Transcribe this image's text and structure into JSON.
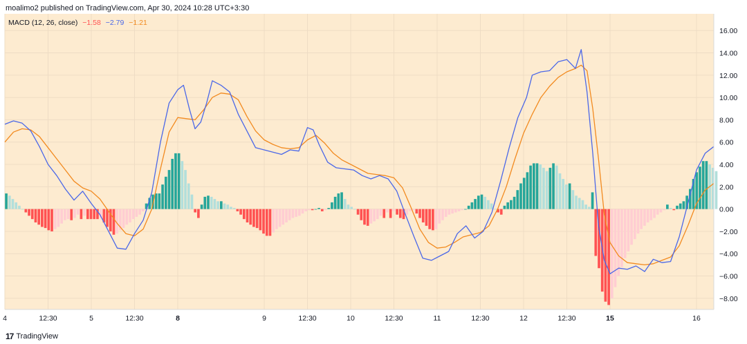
{
  "header": {
    "published": "moalimo2 published on TradingView.com, Apr 30, 2024 10:28 UTC+3:30"
  },
  "footer": {
    "brand": "TradingView",
    "logo": "17"
  },
  "colors": {
    "background": "#fdebd0",
    "macd_line": "#4a67e8",
    "signal_line": "#f28a1f",
    "hist_pos_strong": "#26a69a",
    "hist_pos_weak": "#b2dfdb",
    "hist_neg_strong": "#ff5252",
    "hist_neg_weak": "#ffcdd2",
    "grid": "#eedcc4",
    "axis_text": "#131722"
  },
  "chart_data": {
    "type": "line",
    "indicator": "MACD (12, 26, close)",
    "legend": {
      "label": "MACD (12, 26, close)",
      "histogram_value": "−1.58",
      "macd_value": "−2.79",
      "signal_value": "−1.21"
    },
    "ylim": [
      -9,
      17.5
    ],
    "y_ticks": [
      16,
      14,
      12,
      10,
      8,
      6,
      4,
      2,
      0,
      -2,
      -4,
      -6,
      -8
    ],
    "y_tick_labels": [
      "16.00",
      "14.00",
      "12.00",
      "10.00",
      "8.00",
      "6.00",
      "4.00",
      "2.00",
      "0.00",
      "−2.00",
      "−4.00",
      "−6.00",
      "−8.00"
    ],
    "x_range": [
      0,
      246
    ],
    "x_ticks": [
      {
        "x": 0,
        "label": "4",
        "bold": false
      },
      {
        "x": 15,
        "label": "12:30",
        "bold": false
      },
      {
        "x": 30,
        "label": "5",
        "bold": false
      },
      {
        "x": 45,
        "label": "12:30",
        "bold": false
      },
      {
        "x": 60,
        "label": "8",
        "bold": true
      },
      {
        "x": 90,
        "label": "9",
        "bold": false
      },
      {
        "x": 105,
        "label": "12:30",
        "bold": false
      },
      {
        "x": 120,
        "label": "10",
        "bold": false
      },
      {
        "x": 135,
        "label": "12:30",
        "bold": false
      },
      {
        "x": 150,
        "label": "11",
        "bold": false
      },
      {
        "x": 165,
        "label": "12:30",
        "bold": false
      },
      {
        "x": 180,
        "label": "12",
        "bold": false
      },
      {
        "x": 195,
        "label": "12:30",
        "bold": false
      },
      {
        "x": 210,
        "label": "15",
        "bold": true
      },
      {
        "x": 240,
        "label": "16",
        "bold": false
      }
    ],
    "series": [
      {
        "name": "MACD",
        "points": [
          [
            0,
            7.6
          ],
          [
            3,
            7.9
          ],
          [
            6,
            7.7
          ],
          [
            9,
            7
          ],
          [
            12,
            5.6
          ],
          [
            15,
            4
          ],
          [
            18,
            3
          ],
          [
            21,
            1.8
          ],
          [
            24,
            0.8
          ],
          [
            27,
            1.6
          ],
          [
            30,
            0.5
          ],
          [
            33,
            -0.5
          ],
          [
            36,
            -2
          ],
          [
            39,
            -3.5
          ],
          [
            42,
            -3.6
          ],
          [
            45,
            -2.2
          ],
          [
            48,
            -1
          ],
          [
            51,
            1.5
          ],
          [
            54,
            6
          ],
          [
            57,
            9.5
          ],
          [
            60,
            10.7
          ],
          [
            62,
            11.1
          ],
          [
            64,
            9
          ],
          [
            66,
            7.2
          ],
          [
            68,
            7.8
          ],
          [
            70,
            9.5
          ],
          [
            72,
            11.5
          ],
          [
            75,
            11.1
          ],
          [
            78,
            10.5
          ],
          [
            81,
            8.5
          ],
          [
            84,
            7
          ],
          [
            87,
            5.5
          ],
          [
            90,
            5.3
          ],
          [
            93,
            5.1
          ],
          [
            96,
            4.9
          ],
          [
            99,
            5.3
          ],
          [
            102,
            5.2
          ],
          [
            105,
            7.3
          ],
          [
            107,
            7.1
          ],
          [
            109,
            5.8
          ],
          [
            112,
            4.2
          ],
          [
            115,
            3.7
          ],
          [
            118,
            3.6
          ],
          [
            121,
            3.5
          ],
          [
            124,
            3
          ],
          [
            127,
            2.7
          ],
          [
            130,
            3
          ],
          [
            133,
            2.7
          ],
          [
            136,
            1.6
          ],
          [
            139,
            -0.5
          ],
          [
            142,
            -2.5
          ],
          [
            145,
            -4.4
          ],
          [
            148,
            -4.6
          ],
          [
            151,
            -4.2
          ],
          [
            154,
            -3.8
          ],
          [
            157,
            -2.2
          ],
          [
            160,
            -1.5
          ],
          [
            163,
            -2.6
          ],
          [
            166,
            -2
          ],
          [
            169,
            -0.3
          ],
          [
            172,
            2.5
          ],
          [
            175,
            5.5
          ],
          [
            178,
            8.2
          ],
          [
            181,
            10
          ],
          [
            183,
            12
          ],
          [
            186,
            12.3
          ],
          [
            189,
            12.4
          ],
          [
            192,
            13.2
          ],
          [
            195,
            13.4
          ],
          [
            198,
            12.6
          ],
          [
            200,
            14.3
          ],
          [
            202,
            10.5
          ],
          [
            204,
            5
          ],
          [
            206,
            -1.5
          ],
          [
            208,
            -4.6
          ],
          [
            210,
            -5.8
          ],
          [
            213,
            -5.3
          ],
          [
            216,
            -5.4
          ],
          [
            219,
            -5.1
          ],
          [
            222,
            -5.6
          ],
          [
            225,
            -4.5
          ],
          [
            228,
            -4.8
          ],
          [
            231,
            -4.7
          ],
          [
            234,
            -2.5
          ],
          [
            237,
            0.5
          ],
          [
            240,
            3.5
          ],
          [
            243,
            5
          ],
          [
            246,
            5.6
          ]
        ]
      },
      {
        "name": "Signal",
        "points": [
          [
            0,
            6
          ],
          [
            3,
            6.9
          ],
          [
            6,
            7.2
          ],
          [
            9,
            7.1
          ],
          [
            12,
            6.5
          ],
          [
            15,
            5.5
          ],
          [
            18,
            4.5
          ],
          [
            21,
            3.5
          ],
          [
            24,
            2.5
          ],
          [
            27,
            1.9
          ],
          [
            30,
            1.6
          ],
          [
            33,
            0.9
          ],
          [
            36,
            -0.2
          ],
          [
            39,
            -1.3
          ],
          [
            42,
            -2.2
          ],
          [
            45,
            -2.4
          ],
          [
            48,
            -1.8
          ],
          [
            51,
            0
          ],
          [
            54,
            3.6
          ],
          [
            57,
            6.9
          ],
          [
            60,
            8.2
          ],
          [
            63,
            8.1
          ],
          [
            66,
            8
          ],
          [
            69,
            8.9
          ],
          [
            72,
            10
          ],
          [
            75,
            10.4
          ],
          [
            78,
            10.3
          ],
          [
            81,
            9.8
          ],
          [
            84,
            8.3
          ],
          [
            87,
            7
          ],
          [
            90,
            6.2
          ],
          [
            93,
            5.8
          ],
          [
            96,
            5.5
          ],
          [
            99,
            5.4
          ],
          [
            102,
            5.5
          ],
          [
            105,
            6.2
          ],
          [
            108,
            6.6
          ],
          [
            111,
            5.9
          ],
          [
            114,
            5
          ],
          [
            117,
            4.4
          ],
          [
            120,
            4
          ],
          [
            123,
            3.6
          ],
          [
            126,
            3.2
          ],
          [
            129,
            3.1
          ],
          [
            132,
            3
          ],
          [
            135,
            2.8
          ],
          [
            138,
            1.9
          ],
          [
            141,
            0.1
          ],
          [
            144,
            -1.8
          ],
          [
            147,
            -3
          ],
          [
            150,
            -3.5
          ],
          [
            153,
            -3.4
          ],
          [
            156,
            -3
          ],
          [
            159,
            -2.5
          ],
          [
            162,
            -2.3
          ],
          [
            165,
            -2.1
          ],
          [
            168,
            -1.5
          ],
          [
            171,
            0
          ],
          [
            174,
            2
          ],
          [
            177,
            4.5
          ],
          [
            180,
            6.8
          ],
          [
            183,
            8.5
          ],
          [
            186,
            10
          ],
          [
            189,
            11
          ],
          [
            192,
            11.8
          ],
          [
            195,
            12.3
          ],
          [
            198,
            12.6
          ],
          [
            200,
            12.9
          ],
          [
            202,
            12.4
          ],
          [
            204,
            9
          ],
          [
            206,
            4.5
          ],
          [
            208,
            -0.5
          ],
          [
            210,
            -3
          ],
          [
            213,
            -4.2
          ],
          [
            216,
            -4.8
          ],
          [
            219,
            -4.9
          ],
          [
            222,
            -5
          ],
          [
            225,
            -4.9
          ],
          [
            228,
            -4.6
          ],
          [
            231,
            -4.3
          ],
          [
            234,
            -3.3
          ],
          [
            237,
            -1.5
          ],
          [
            240,
            0.5
          ],
          [
            243,
            1.7
          ],
          [
            246,
            2.3
          ]
        ]
      },
      {
        "name": "Histogram",
        "values": [
          1.4,
          1.2,
          0.9,
          0.6,
          0.3,
          0,
          -0.3,
          -0.6,
          -0.9,
          -1.2,
          -1.4,
          -1.6,
          -1.7,
          -1.9,
          -2.0,
          -1.8,
          -1.6,
          -1.3,
          -1.0,
          -0.9,
          -1.0,
          -0.8,
          -0.5,
          -0.9,
          -0.6,
          -0.9,
          -0.9,
          -0.9,
          -0.9,
          -0.8,
          -1.2,
          -1.6,
          -2.0,
          -2.3,
          -2.2,
          -1.9,
          -1.7,
          -1.4,
          -1.2,
          -0.9,
          -0.7,
          -0.5,
          -0.2,
          0.5,
          1.0,
          1.3,
          1.4,
          1.4,
          2.2,
          2.9,
          3.5,
          4.5,
          5.0,
          5.0,
          4.3,
          3.5,
          2.3,
          1.3,
          -0.3,
          -0.8,
          0.4,
          1.1,
          1.2,
          1.1,
          0.9,
          0.7,
          0.7,
          0.5,
          0.4,
          0.2,
          0.1,
          -0.2,
          -0.5,
          -0.9,
          -1.2,
          -1.4,
          -1.6,
          -1.7,
          -1.9,
          -2.2,
          -2.4,
          -2.4,
          -2.1,
          -1.8,
          -1.6,
          -1.4,
          -1.2,
          -1.0,
          -0.8,
          -0.7,
          -0.6,
          -0.4,
          -0.2,
          -0.1,
          -0.1,
          0,
          0.1,
          -0.2,
          -0.1,
          0.1,
          0.6,
          1.1,
          1.4,
          1.5,
          0.9,
          0.4,
          0.2,
          0,
          -0.5,
          -1.0,
          -1.4,
          -1.5,
          -1.3,
          -1.1,
          -0.9,
          -0.6,
          -0.8,
          -0.3,
          -0.8,
          -0.2,
          -0.5,
          -0.8,
          -0.9,
          -0.5,
          -0.2,
          -0.1,
          -0.4,
          -0.8,
          -1.2,
          -1.5,
          -1.8,
          -1.9,
          -1.8,
          -1.3,
          -1.0,
          -0.7,
          -0.5,
          -0.4,
          -0.3,
          -0.2,
          -0.1,
          0,
          0.3,
          0.6,
          0.9,
          1.2,
          1.3,
          1.1,
          0.8,
          0.5,
          0,
          -0.3,
          -0.5,
          0.3,
          0.6,
          0.8,
          1.1,
          1.7,
          2.3,
          2.8,
          3.3,
          3.9,
          4.1,
          4.1,
          4.0,
          3.7,
          3.4,
          3.7,
          4.1,
          3.9,
          3.2,
          2.7,
          2.2,
          2.3,
          1.7,
          1.2,
          1.0,
          0.8,
          0.4,
          0.2,
          1.5,
          -4.2,
          -5.3,
          -7.4,
          -8.3,
          -8.6,
          -8.0,
          -7.0,
          -6.0,
          -5.2,
          -4.4,
          -3.8,
          -3.2,
          -2.7,
          -2.2,
          -1.8,
          -1.5,
          -1.2,
          -1.0,
          -0.8,
          -0.5,
          -0.3,
          -0.1,
          0.4,
          0.1,
          -0.1,
          0.3,
          0.5,
          0.7,
          1.2,
          1.8,
          2.7,
          3.3,
          3.8,
          4.3,
          4.3,
          4.0,
          3.7,
          3.4
        ],
        "x_start": 0.5,
        "x_step": 1.13
      }
    ],
    "grid": true,
    "legend_position": "top-left"
  }
}
